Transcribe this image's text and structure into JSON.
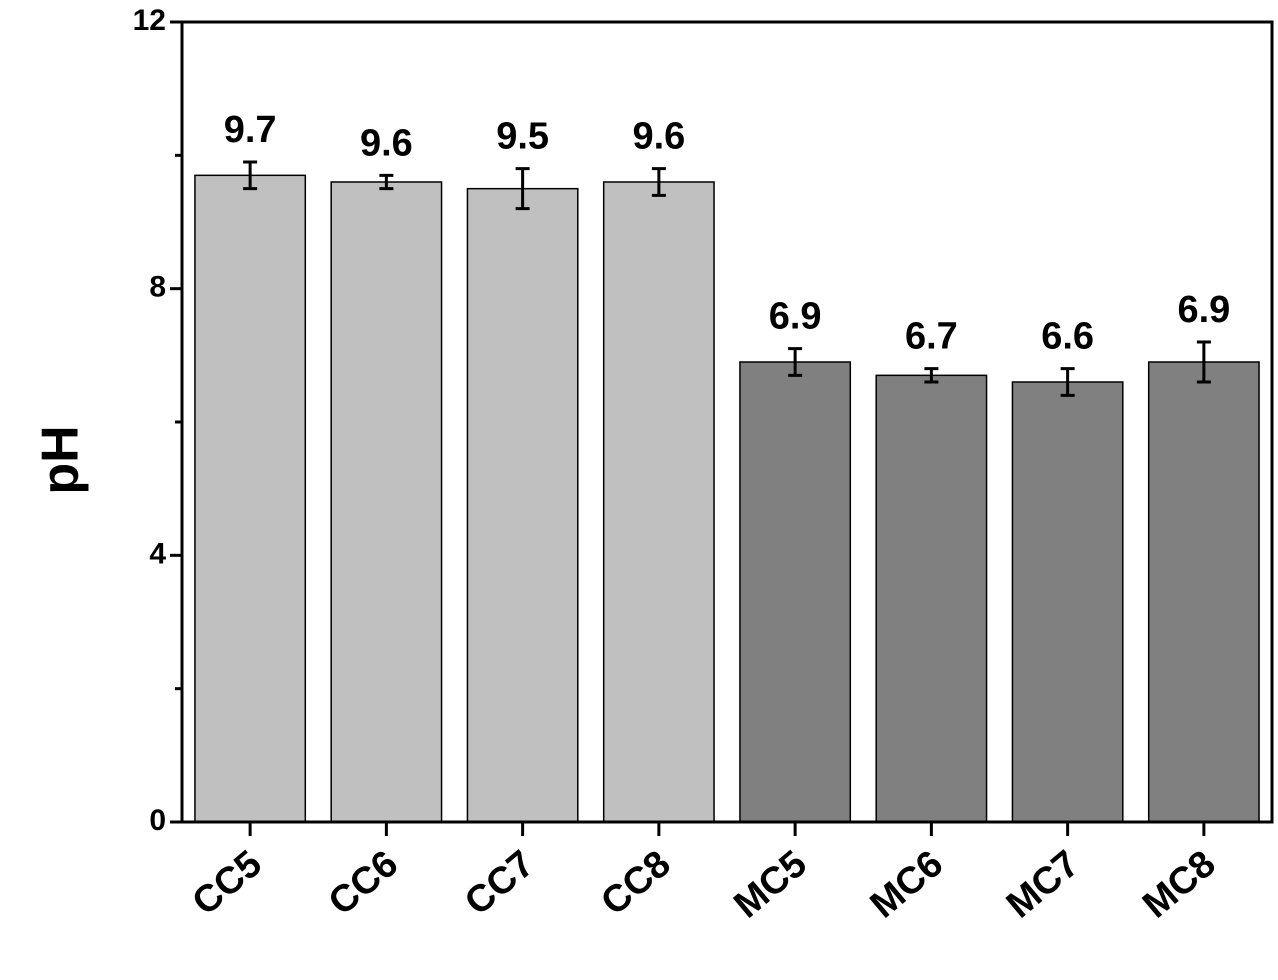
{
  "chart_data": {
    "type": "bar",
    "y_label": "pH",
    "categories": [
      "CC5",
      "CC6",
      "CC7",
      "CC8",
      "MC5",
      "MC6",
      "MC7",
      "MC8"
    ],
    "values": [
      9.7,
      9.6,
      9.5,
      9.6,
      6.9,
      6.7,
      6.6,
      6.9
    ],
    "errors": [
      0.2,
      0.1,
      0.3,
      0.2,
      0.2,
      0.1,
      0.2,
      0.3
    ],
    "colors": [
      "#c0c0c0",
      "#c0c0c0",
      "#c0c0c0",
      "#c0c0c0",
      "#808080",
      "#808080",
      "#808080",
      "#808080"
    ],
    "ylim": [
      0,
      12
    ],
    "yticks": [
      0,
      4,
      8,
      12
    ],
    "yminorticks": [
      2,
      6,
      10
    ],
    "grid": false
  }
}
